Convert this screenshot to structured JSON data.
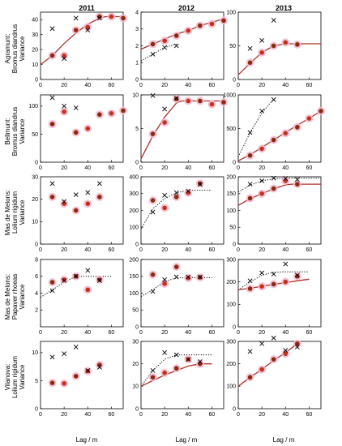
{
  "figure": {
    "years": [
      "2011",
      "2012",
      "2013"
    ],
    "row_labels": [
      [
        "Agramunt:",
        "Bromus diandrus",
        "Variance"
      ],
      [
        "Bellmunt:",
        "Bromus diandrus",
        "Variance"
      ],
      [
        "Mas de Melons:",
        "Lolium rigidum",
        "Variance"
      ],
      [
        "Mas de Melons:",
        "Papaver rhoeas",
        "Variance"
      ],
      [
        "Vilanova:",
        "Lolium rigidum",
        "Variance"
      ]
    ],
    "xlabel": "Lag / m",
    "colors": {
      "model": "#b0302a",
      "point_dark": "#8a2a0e",
      "point_red": "#c4321e",
      "halo": "#f4b6cf",
      "cross": "#000000",
      "dotted": "#000000",
      "axis": "#000000"
    }
  },
  "chart_data": [
    {
      "type": "scatter",
      "row": 0,
      "col": 0,
      "xlim": [
        0,
        70
      ],
      "ylim": [
        0,
        45
      ],
      "xticks": [
        0,
        20,
        40,
        60
      ],
      "yticks": [
        0,
        10,
        20,
        30,
        40
      ],
      "lag": [
        10,
        20,
        30,
        40,
        50,
        60,
        70
      ],
      "observed": [
        16,
        16,
        33,
        35,
        42,
        42,
        41
      ],
      "cross": [
        [
          10,
          34
        ],
        [
          20,
          14
        ],
        [
          30,
          41
        ],
        [
          40,
          33
        ],
        [
          50,
          41
        ]
      ],
      "model": [
        [
          0,
          10
        ],
        [
          10,
          16
        ],
        [
          20,
          24
        ],
        [
          30,
          31
        ],
        [
          40,
          37
        ],
        [
          50,
          41
        ],
        [
          55,
          42
        ],
        [
          70,
          42
        ]
      ]
    },
    {
      "type": "scatter",
      "row": 0,
      "col": 1,
      "xlim": [
        0,
        70
      ],
      "ylim": [
        0,
        4
      ],
      "xticks": [
        0,
        20,
        40,
        60
      ],
      "yticks": [
        0,
        1,
        2,
        3,
        4
      ],
      "lag": [
        10,
        20,
        30,
        40,
        50,
        60,
        70
      ],
      "observed": [
        2.1,
        2.3,
        2.6,
        2.9,
        3.2,
        3.3,
        3.5
      ],
      "cross": [
        [
          10,
          1.5
        ],
        [
          20,
          1.9
        ],
        [
          30,
          2.0
        ]
      ],
      "model": [
        [
          0,
          1.8
        ],
        [
          10,
          2.1
        ],
        [
          20,
          2.4
        ],
        [
          30,
          2.7
        ],
        [
          40,
          2.9
        ],
        [
          50,
          3.2
        ],
        [
          60,
          3.4
        ],
        [
          70,
          3.6
        ]
      ],
      "dotted": [
        [
          0,
          1.1
        ],
        [
          10,
          1.5
        ],
        [
          20,
          1.9
        ],
        [
          30,
          2.1
        ]
      ]
    },
    {
      "type": "scatter",
      "row": 0,
      "col": 2,
      "xlim": [
        0,
        70
      ],
      "ylim": [
        0,
        100
      ],
      "xticks": [
        0,
        20,
        40,
        60
      ],
      "yticks": [
        0,
        50,
        100
      ],
      "lag": [
        10,
        20,
        30,
        40,
        50
      ],
      "observed": [
        25,
        40,
        50,
        55,
        52
      ],
      "cross": [
        [
          10,
          46
        ],
        [
          20,
          58
        ],
        [
          30,
          88
        ]
      ],
      "model": [
        [
          0,
          7
        ],
        [
          10,
          24
        ],
        [
          20,
          40
        ],
        [
          30,
          50
        ],
        [
          40,
          53
        ],
        [
          70,
          53
        ]
      ]
    },
    {
      "type": "scatter",
      "row": 1,
      "col": 0,
      "xlim": [
        0,
        70
      ],
      "ylim": [
        0,
        120
      ],
      "xticks": [
        0,
        20,
        40,
        60
      ],
      "yticks": [
        0,
        50,
        100
      ],
      "lag": [
        10,
        20,
        30,
        40,
        50,
        60,
        70
      ],
      "observed": [
        68,
        90,
        53,
        60,
        85,
        87,
        92
      ],
      "cross": [
        [
          10,
          115
        ],
        [
          20,
          100
        ],
        [
          30,
          97
        ]
      ],
      "model": []
    },
    {
      "type": "scatter",
      "row": 1,
      "col": 1,
      "xlim": [
        0,
        70
      ],
      "ylim": [
        0,
        10
      ],
      "xticks": [
        0,
        20,
        40,
        60
      ],
      "yticks": [
        0,
        5,
        10
      ],
      "lag": [
        10,
        20,
        30,
        40,
        50,
        60,
        70
      ],
      "observed": [
        4.2,
        5.9,
        9.4,
        9.1,
        9.1,
        8.6,
        8.9
      ],
      "cross": [
        [
          10,
          9.9
        ],
        [
          20,
          7.9
        ],
        [
          30,
          9.5
        ]
      ],
      "model": [
        [
          0,
          0.5
        ],
        [
          10,
          3.9
        ],
        [
          20,
          6.7
        ],
        [
          30,
          8.8
        ],
        [
          34,
          9.1
        ],
        [
          70,
          9.1
        ]
      ]
    },
    {
      "type": "scatter",
      "row": 1,
      "col": 2,
      "xlim": [
        0,
        70
      ],
      "ylim": [
        0,
        1000
      ],
      "xticks": [
        0,
        20,
        40,
        60
      ],
      "yticks": [
        0,
        500,
        1000
      ],
      "lag": [
        10,
        20,
        30,
        40,
        50,
        60,
        70
      ],
      "observed": [
        100,
        200,
        330,
        430,
        520,
        650,
        760
      ],
      "cross": [
        [
          10,
          440
        ],
        [
          20,
          760
        ],
        [
          30,
          930
        ]
      ],
      "model": [
        [
          0,
          20
        ],
        [
          10,
          110
        ],
        [
          20,
          220
        ],
        [
          30,
          330
        ],
        [
          40,
          440
        ],
        [
          50,
          550
        ],
        [
          60,
          650
        ],
        [
          70,
          760
        ]
      ],
      "dotted": [
        [
          0,
          80
        ],
        [
          10,
          440
        ],
        [
          20,
          730
        ],
        [
          30,
          940
        ]
      ]
    },
    {
      "type": "scatter",
      "row": 2,
      "col": 0,
      "xlim": [
        0,
        70
      ],
      "ylim": [
        0,
        30
      ],
      "xticks": [
        0,
        20,
        40,
        60
      ],
      "yticks": [
        0,
        10,
        20,
        30
      ],
      "lag": [
        10,
        20,
        30,
        40,
        50
      ],
      "observed": [
        21,
        18,
        15,
        18,
        21
      ],
      "cross": [
        [
          10,
          27
        ],
        [
          20,
          19
        ],
        [
          30,
          22
        ],
        [
          40,
          23
        ],
        [
          50,
          27
        ]
      ],
      "model": []
    },
    {
      "type": "scatter",
      "row": 2,
      "col": 1,
      "xlim": [
        0,
        70
      ],
      "ylim": [
        0,
        400
      ],
      "xticks": [
        0,
        20,
        40,
        60
      ],
      "yticks": [
        0,
        100,
        200,
        300,
        400
      ],
      "lag": [
        10,
        20,
        30,
        40,
        50
      ],
      "observed": [
        260,
        215,
        280,
        305,
        360
      ],
      "cross": [
        [
          10,
          190
        ],
        [
          20,
          290
        ],
        [
          30,
          305
        ],
        [
          40,
          315
        ],
        [
          50,
          355
        ]
      ],
      "model": [],
      "dotted": [
        [
          0,
          90
        ],
        [
          10,
          210
        ],
        [
          20,
          270
        ],
        [
          30,
          305
        ],
        [
          40,
          320
        ],
        [
          60,
          320
        ]
      ]
    },
    {
      "type": "scatter",
      "row": 2,
      "col": 2,
      "xlim": [
        0,
        70
      ],
      "ylim": [
        0,
        200
      ],
      "xticks": [
        0,
        20,
        40,
        60
      ],
      "yticks": [
        0,
        50,
        100,
        150,
        200
      ],
      "lag": [
        10,
        20,
        30,
        40,
        50
      ],
      "observed": [
        136,
        150,
        165,
        188,
        178
      ],
      "cross": [
        [
          10,
          178
        ],
        [
          20,
          188
        ],
        [
          30,
          196
        ],
        [
          40,
          195
        ],
        [
          50,
          192
        ]
      ],
      "model": [
        [
          0,
          115
        ],
        [
          10,
          135
        ],
        [
          20,
          150
        ],
        [
          30,
          164
        ],
        [
          40,
          176
        ],
        [
          45,
          178
        ],
        [
          70,
          178
        ]
      ],
      "dotted": [
        [
          0,
          155
        ],
        [
          10,
          175
        ],
        [
          20,
          188
        ],
        [
          30,
          194
        ],
        [
          40,
          196
        ],
        [
          70,
          196
        ]
      ]
    },
    {
      "type": "scatter",
      "row": 3,
      "col": 0,
      "xlim": [
        0,
        70
      ],
      "ylim": [
        0,
        8
      ],
      "xticks": [
        0,
        20,
        40,
        60
      ],
      "yticks": [
        2,
        4,
        6,
        8
      ],
      "lag": [
        10,
        20,
        30,
        40,
        50
      ],
      "observed": [
        5.3,
        5.6,
        6.0,
        4.4,
        5.6
      ],
      "cross": [
        [
          10,
          4.3
        ],
        [
          20,
          5.5
        ],
        [
          30,
          6.0
        ],
        [
          40,
          6.7
        ],
        [
          50,
          5.5
        ]
      ],
      "model": [],
      "dotted": [
        [
          0,
          3.5
        ],
        [
          10,
          4.4
        ],
        [
          20,
          5.3
        ],
        [
          30,
          6.0
        ],
        [
          40,
          6.0
        ],
        [
          60,
          6.0
        ]
      ]
    },
    {
      "type": "scatter",
      "row": 3,
      "col": 1,
      "xlim": [
        0,
        70
      ],
      "ylim": [
        0,
        200
      ],
      "xticks": [
        0,
        20,
        40,
        60
      ],
      "yticks": [
        0,
        50,
        100,
        150,
        200
      ],
      "lag": [
        10,
        20,
        30,
        40,
        50
      ],
      "observed": [
        155,
        128,
        178,
        145,
        147
      ],
      "cross": [
        [
          10,
          105
        ],
        [
          20,
          140
        ],
        [
          30,
          148
        ],
        [
          40,
          148
        ],
        [
          50,
          148
        ]
      ],
      "model": [],
      "dotted": [
        [
          0,
          90
        ],
        [
          10,
          110
        ],
        [
          20,
          135
        ],
        [
          30,
          145
        ],
        [
          40,
          146
        ],
        [
          60,
          146
        ]
      ]
    },
    {
      "type": "scatter",
      "row": 3,
      "col": 2,
      "xlim": [
        0,
        70
      ],
      "ylim": [
        0,
        300
      ],
      "xticks": [
        0,
        20,
        40,
        60
      ],
      "yticks": [
        0,
        100,
        200,
        300
      ],
      "lag": [
        10,
        20,
        30,
        40,
        50
      ],
      "observed": [
        170,
        180,
        190,
        200,
        225
      ],
      "cross": [
        [
          10,
          205
        ],
        [
          20,
          240
        ],
        [
          30,
          235
        ],
        [
          40,
          280
        ],
        [
          50,
          230
        ]
      ],
      "model": [
        [
          0,
          165
        ],
        [
          10,
          172
        ],
        [
          20,
          180
        ],
        [
          30,
          189
        ],
        [
          40,
          197
        ],
        [
          50,
          205
        ],
        [
          60,
          212
        ]
      ],
      "dotted": [
        [
          0,
          165
        ],
        [
          10,
          200
        ],
        [
          20,
          230
        ],
        [
          30,
          243
        ],
        [
          40,
          245
        ],
        [
          60,
          245
        ]
      ]
    },
    {
      "type": "scatter",
      "row": 4,
      "col": 0,
      "xlim": [
        0,
        70
      ],
      "ylim": [
        0,
        12
      ],
      "xticks": [
        0,
        20,
        40,
        60
      ],
      "yticks": [
        0,
        5,
        10
      ],
      "lag": [
        10,
        20,
        30,
        40,
        50
      ],
      "observed": [
        4.6,
        4.5,
        5.8,
        6.7,
        7.8
      ],
      "cross": [
        [
          10,
          9.2
        ],
        [
          20,
          9.8
        ],
        [
          30,
          11.0
        ],
        [
          40,
          6.8
        ],
        [
          50,
          7.4
        ]
      ],
      "model": []
    },
    {
      "type": "scatter",
      "row": 4,
      "col": 1,
      "xlim": [
        0,
        70
      ],
      "ylim": [
        0,
        30
      ],
      "xticks": [
        0,
        20,
        40,
        60
      ],
      "yticks": [
        0,
        10,
        20,
        30
      ],
      "lag": [
        10,
        20,
        30,
        40,
        50
      ],
      "observed": [
        14,
        16,
        18,
        22,
        20
      ],
      "cross": [
        [
          10,
          17
        ],
        [
          20,
          25
        ],
        [
          30,
          24
        ],
        [
          40,
          22
        ],
        [
          50,
          21
        ]
      ],
      "model": [
        [
          0,
          10
        ],
        [
          10,
          12.5
        ],
        [
          20,
          15
        ],
        [
          30,
          17
        ],
        [
          40,
          19
        ],
        [
          50,
          20
        ],
        [
          60,
          20
        ]
      ],
      "dotted": [
        [
          0,
          10
        ],
        [
          10,
          17
        ],
        [
          20,
          22
        ],
        [
          30,
          24
        ],
        [
          40,
          24
        ],
        [
          60,
          24
        ]
      ]
    },
    {
      "type": "scatter",
      "row": 4,
      "col": 2,
      "xlim": [
        0,
        70
      ],
      "ylim": [
        0,
        300
      ],
      "xticks": [
        0,
        20,
        40,
        60
      ],
      "yticks": [
        0,
        100,
        200,
        300
      ],
      "lag": [
        10,
        20,
        30,
        40,
        50
      ],
      "observed": [
        140,
        175,
        220,
        245,
        290
      ],
      "cross": [
        [
          10,
          255
        ],
        [
          20,
          290
        ],
        [
          30,
          315
        ],
        [
          40,
          260
        ],
        [
          50,
          275
        ]
      ],
      "model": [
        [
          0,
          100
        ],
        [
          10,
          140
        ],
        [
          20,
          175
        ],
        [
          30,
          215
        ],
        [
          40,
          250
        ],
        [
          50,
          290
        ]
      ]
    }
  ]
}
